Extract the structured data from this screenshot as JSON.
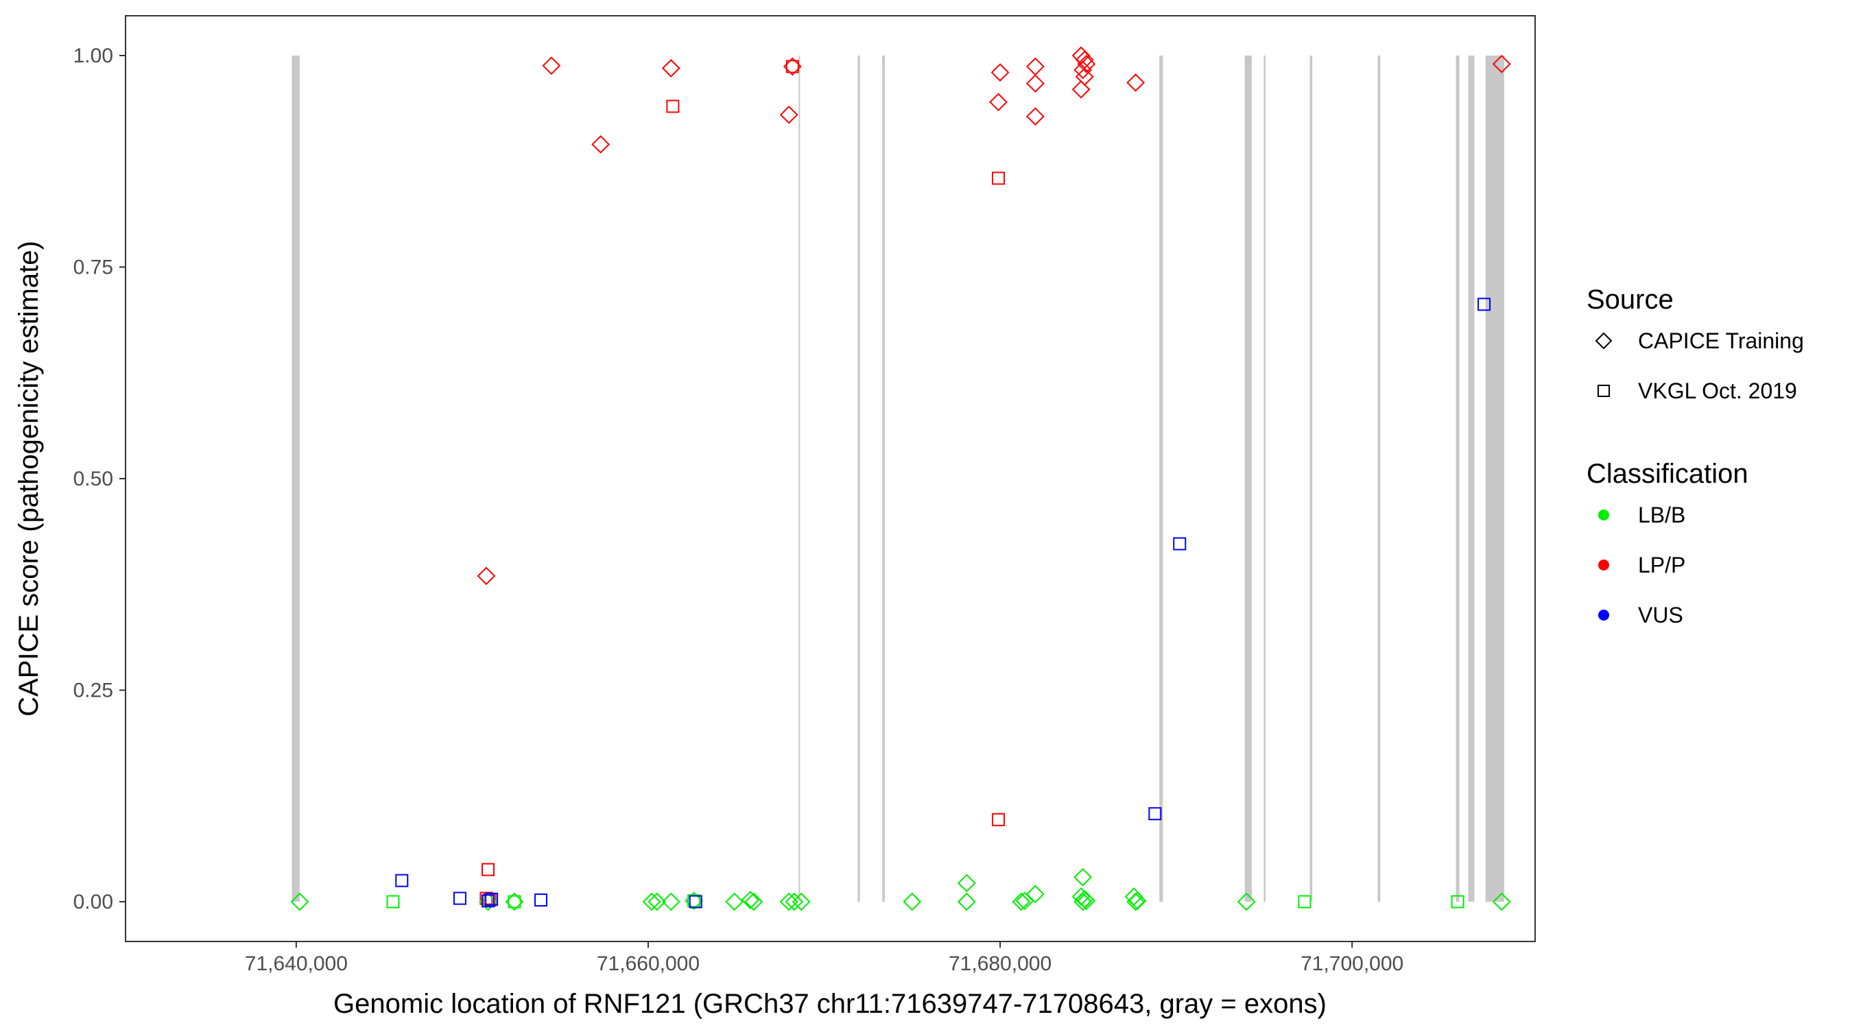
{
  "chart_data": {
    "type": "scatter",
    "title": "",
    "xlabel": "Genomic location of RNF121 (GRCh37 chr11:71639747-71708643, gray = exons)",
    "ylabel": "CAPICE score (pathogenicity estimate)",
    "xlim": [
      71630300,
      71710400
    ],
    "ylim": [
      -0.047,
      1.047
    ],
    "x_ticks": [
      71640000,
      71660000,
      71680000,
      71700000
    ],
    "x_tick_labels": [
      "71,640,000",
      "71,660,000",
      "71,680,000",
      "71,700,000"
    ],
    "y_ticks": [
      0.0,
      0.25,
      0.5,
      0.75,
      1.0
    ],
    "y_tick_labels": [
      "0.00",
      "0.25",
      "0.50",
      "0.75",
      "1.00"
    ],
    "grid": false,
    "legend_position": "right",
    "exons": [
      [
        71639750,
        71640200
      ],
      [
        71668550,
        71668560
      ],
      [
        71671900,
        71672030
      ],
      [
        71673300,
        71673450
      ],
      [
        71689050,
        71689250
      ],
      [
        71693900,
        71694300
      ],
      [
        71694980,
        71695080
      ],
      [
        71697600,
        71697740
      ],
      [
        71701450,
        71701600
      ],
      [
        71705900,
        71706100
      ],
      [
        71706600,
        71706950
      ],
      [
        71707580,
        71708643
      ]
    ],
    "legends": [
      {
        "title": "Source",
        "entries": [
          {
            "label": "CAPICE Training",
            "shape": "diamond"
          },
          {
            "label": "VKGL Oct. 2019",
            "shape": "square"
          }
        ]
      },
      {
        "title": "Classification",
        "entries": [
          {
            "label": "LB/B",
            "color": "#00ee00"
          },
          {
            "label": "LP/P",
            "color": "#ff0000"
          },
          {
            "label": "VUS",
            "color": "#0000ff"
          }
        ]
      }
    ],
    "series": [
      {
        "source": "CAPICE Training",
        "classification": "LP/P",
        "shape": "diamond",
        "color": "#ff0000",
        "points": [
          [
            71650800,
            0.385
          ],
          [
            71654500,
            0.988
          ],
          [
            71657300,
            0.895
          ],
          [
            71661300,
            0.985
          ],
          [
            71668000,
            0.93
          ],
          [
            71668200,
            0.987
          ],
          [
            71680000,
            0.98
          ],
          [
            71679900,
            0.945
          ],
          [
            71682000,
            0.987
          ],
          [
            71682000,
            0.967
          ],
          [
            71682000,
            0.928
          ],
          [
            71684600,
            1.0
          ],
          [
            71684800,
            0.995
          ],
          [
            71684900,
            0.99
          ],
          [
            71684700,
            0.983
          ],
          [
            71684800,
            0.975
          ],
          [
            71684600,
            0.96
          ],
          [
            71687700,
            0.968
          ],
          [
            71708500,
            0.99
          ]
        ]
      },
      {
        "source": "VKGL Oct. 2019",
        "classification": "LP/P",
        "shape": "square",
        "color": "#ff0000",
        "points": [
          [
            71661400,
            0.94
          ],
          [
            71668200,
            0.987
          ],
          [
            71679900,
            0.855
          ],
          [
            71679900,
            0.097
          ],
          [
            71650900,
            0.038
          ],
          [
            71650800,
            0.004
          ],
          [
            71651000,
            0.002
          ]
        ]
      },
      {
        "source": "CAPICE Training",
        "classification": "LB/B",
        "shape": "diamond",
        "color": "#00ee00",
        "points": [
          [
            71640200,
            0.0
          ],
          [
            71650900,
            0.0
          ],
          [
            71652400,
            0.0
          ],
          [
            71660200,
            0.0
          ],
          [
            71660500,
            0.0
          ],
          [
            71661300,
            0.0
          ],
          [
            71662600,
            0.001
          ],
          [
            71664900,
            0.0
          ],
          [
            71665800,
            0.002
          ],
          [
            71666000,
            0.0
          ],
          [
            71668000,
            0.0
          ],
          [
            71668300,
            0.0
          ],
          [
            71668700,
            0.0
          ],
          [
            71675000,
            0.0
          ],
          [
            71678100,
            0.022
          ],
          [
            71678100,
            0.0
          ],
          [
            71681200,
            0.0
          ],
          [
            71681400,
            0.001
          ],
          [
            71682000,
            0.009
          ],
          [
            71684700,
            0.029
          ],
          [
            71684600,
            0.006
          ],
          [
            71684800,
            0.003
          ],
          [
            71684900,
            0.001
          ],
          [
            71684700,
            0.0
          ],
          [
            71687600,
            0.006
          ],
          [
            71687800,
            0.001
          ],
          [
            71687700,
            0.0
          ],
          [
            71694000,
            0.0
          ],
          [
            71708500,
            0.0
          ]
        ]
      },
      {
        "source": "VKGL Oct. 2019",
        "classification": "LB/B",
        "shape": "square",
        "color": "#00ee00",
        "points": [
          [
            71645500,
            0.0
          ],
          [
            71652400,
            0.0
          ],
          [
            71662600,
            0.001
          ],
          [
            71697300,
            0.0
          ],
          [
            71706000,
            0.0
          ]
        ]
      },
      {
        "source": "VKGL Oct. 2019",
        "classification": "VUS",
        "shape": "square",
        "color": "#0000ff",
        "points": [
          [
            71646000,
            0.025
          ],
          [
            71649300,
            0.004
          ],
          [
            71651100,
            0.003
          ],
          [
            71650900,
            0.001
          ],
          [
            71653900,
            0.002
          ],
          [
            71662700,
            0.0
          ],
          [
            71688800,
            0.104
          ],
          [
            71690200,
            0.423
          ],
          [
            71707500,
            0.706
          ]
        ]
      }
    ]
  }
}
